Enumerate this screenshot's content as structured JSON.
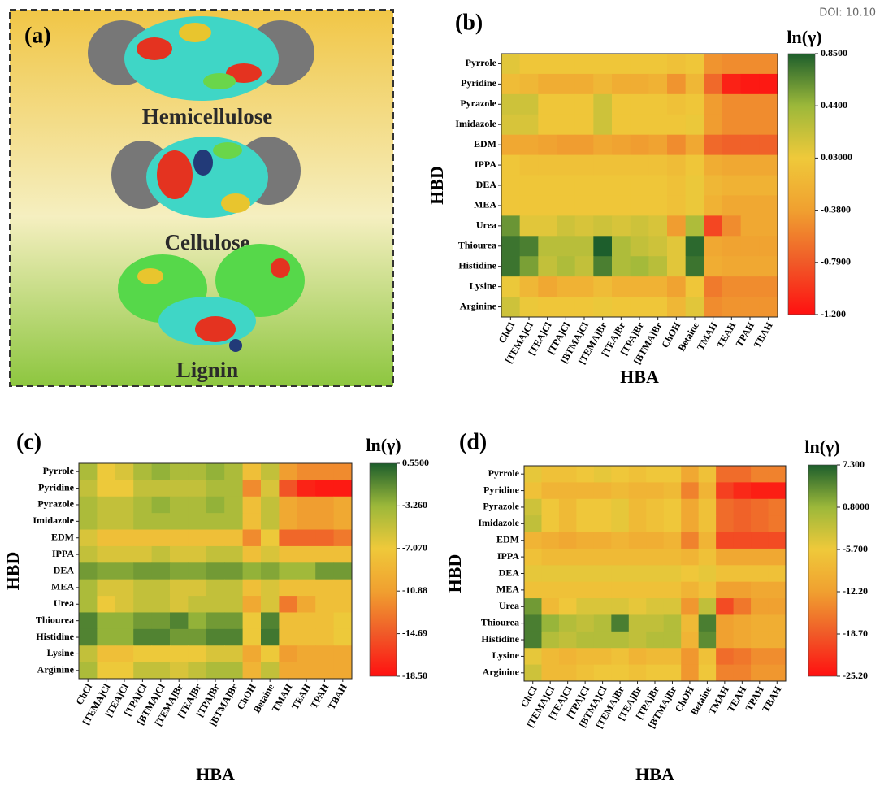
{
  "doi": "DOI: 10.10",
  "panel_a": {
    "label": "(a)",
    "molecules": [
      "Hemicellulose",
      "Cellulose",
      "Lignin"
    ]
  },
  "chart_data": [
    {
      "type": "heatmap",
      "panel_label": "(b)",
      "x_label": "HBA",
      "y_label": "HBD",
      "colorbar_title": "ln(γ)",
      "x_categories": [
        "ChCl",
        "[TEMA]Cl",
        "[TEA]Cl",
        "[TPA]Cl",
        "[BTMA]Cl",
        "[TEMA]Br",
        "[TEA]Br",
        "[TPA]Br",
        "[BTMA]Br",
        "ChOH",
        "Betaine",
        "TMAH",
        "TEAH",
        "TPAH",
        "TBAH"
      ],
      "y_categories": [
        "Pyrrole",
        "Pyridine",
        "Pyrazole",
        "Imidazole",
        "EDM",
        "IPPA",
        "DEA",
        "MEA",
        "Urea",
        "Thiourea",
        "Histidine",
        "Lysine",
        "Arginine"
      ],
      "z": [
        [
          0.1,
          0,
          0,
          0,
          0,
          0,
          0,
          0,
          0,
          -0.05,
          0,
          -0.45,
          -0.5,
          -0.5,
          -0.5
        ],
        [
          -0.1,
          -0.15,
          -0.25,
          -0.25,
          -0.25,
          -0.15,
          -0.25,
          -0.25,
          -0.2,
          -0.45,
          -0.15,
          -0.7,
          -1.1,
          -1.15,
          -1.15
        ],
        [
          0.2,
          0.2,
          0,
          0,
          0,
          0.2,
          0,
          0,
          0,
          -0.05,
          0,
          -0.4,
          -0.5,
          -0.5,
          -0.5
        ],
        [
          0.15,
          0.15,
          0,
          0,
          0,
          0.2,
          0,
          0,
          0,
          0,
          0.05,
          -0.4,
          -0.5,
          -0.5,
          -0.5
        ],
        [
          -0.3,
          -0.3,
          -0.35,
          -0.4,
          -0.4,
          -0.3,
          -0.35,
          -0.4,
          -0.35,
          -0.5,
          -0.3,
          -0.7,
          -0.75,
          -0.75,
          -0.75
        ],
        [
          0,
          -0.05,
          -0.05,
          -0.05,
          -0.05,
          -0.05,
          -0.05,
          -0.05,
          -0.05,
          -0.1,
          0,
          -0.25,
          -0.3,
          -0.3,
          -0.3
        ],
        [
          0,
          0,
          0,
          0,
          0,
          0,
          0,
          0,
          0,
          -0.05,
          0.05,
          -0.15,
          -0.2,
          -0.2,
          -0.2
        ],
        [
          0,
          0,
          0,
          0,
          0,
          0,
          0,
          0,
          0,
          -0.05,
          0.05,
          -0.2,
          -0.3,
          -0.3,
          -0.3
        ],
        [
          0.6,
          0.1,
          0.1,
          0.2,
          0.15,
          0.2,
          0.15,
          0.2,
          0.15,
          -0.4,
          0.35,
          -0.9,
          -0.5,
          -0.3,
          -0.3
        ],
        [
          0.75,
          0.7,
          0.3,
          0.3,
          0.3,
          0.85,
          0.35,
          0.25,
          0.2,
          0.1,
          0.8,
          -0.3,
          -0.35,
          -0.35,
          -0.35
        ],
        [
          0.75,
          0.55,
          0.25,
          0.35,
          0.25,
          0.7,
          0.35,
          0.4,
          0.3,
          0.1,
          0.75,
          -0.25,
          -0.3,
          -0.3,
          -0.3
        ],
        [
          0.05,
          -0.15,
          -0.3,
          -0.2,
          -0.2,
          -0.1,
          -0.2,
          -0.2,
          -0.2,
          -0.35,
          0,
          -0.6,
          -0.5,
          -0.5,
          -0.5
        ],
        [
          0.2,
          0.05,
          0,
          0,
          0,
          0.05,
          0,
          0,
          0,
          -0.15,
          0.1,
          -0.5,
          -0.45,
          -0.45,
          -0.45
        ]
      ],
      "clim": [
        -1.2,
        0.85
      ],
      "cticks": [
        {
          "value": 0.85,
          "label": "0.8500"
        },
        {
          "value": 0.44,
          "label": "0.4400"
        },
        {
          "value": 0.03,
          "label": "0.03000"
        },
        {
          "value": -0.38,
          "label": "-0.3800"
        },
        {
          "value": -0.79,
          "label": "-0.7900"
        },
        {
          "value": -1.2,
          "label": "-1.200"
        }
      ],
      "colormap": [
        "#ff1010",
        "#f05a28",
        "#f0a030",
        "#efc93a",
        "#9cb83a",
        "#1d5e2c"
      ]
    },
    {
      "type": "heatmap",
      "panel_label": "(c)",
      "x_label": "HBA",
      "y_label": "HBD",
      "colorbar_title": "ln(γ)",
      "x_categories": [
        "ChCl",
        "[TEMA]Cl",
        "[TEA]Cl",
        "[TPA]Cl",
        "[BTMA]Cl",
        "[TEMA]Br",
        "[TEA]Br",
        "[TPA]Br",
        "[BTMA]Br",
        "ChOH",
        "Betaine",
        "TMAH",
        "TEAH",
        "TPAH",
        "TBAH"
      ],
      "y_categories": [
        "Pyrrole",
        "Pyridine",
        "Pyrazole",
        "Imidazole",
        "EDM",
        "IPPA",
        "DEA",
        "MEA",
        "Urea",
        "Thiourea",
        "Histidine",
        "Lysine",
        "Arginine"
      ],
      "z": [
        [
          -4,
          -7,
          -6,
          -4,
          -3,
          -4,
          -4,
          -3,
          -4,
          -8,
          -5,
          -11,
          -12,
          -12,
          -12
        ],
        [
          -5,
          -7,
          -7,
          -5,
          -5,
          -5,
          -5,
          -4,
          -4,
          -12,
          -6,
          -15,
          -17.5,
          -18,
          -18
        ],
        [
          -4,
          -5,
          -5,
          -4,
          -3,
          -4,
          -4,
          -3,
          -4,
          -8,
          -5,
          -10,
          -11,
          -11,
          -10
        ],
        [
          -4,
          -5,
          -5,
          -4,
          -4,
          -4,
          -4,
          -4,
          -4,
          -8,
          -5,
          -10,
          -11,
          -11,
          -10
        ],
        [
          -6,
          -8,
          -8,
          -8,
          -8,
          -8,
          -8,
          -8,
          -8,
          -12,
          -7,
          -14,
          -14,
          -14,
          -13
        ],
        [
          -5,
          -6,
          -6,
          -6,
          -5,
          -6,
          -6,
          -5,
          -5,
          -8,
          -6,
          -8,
          -8,
          -8,
          -8
        ],
        [
          -2,
          -2.5,
          -2.5,
          -2,
          -2,
          -2.5,
          -2.5,
          -2,
          -2,
          -3,
          -2.5,
          -3.5,
          -3.5,
          -2,
          -2
        ],
        [
          -4,
          -6,
          -6,
          -5,
          -5,
          -6,
          -6,
          -5,
          -5,
          -8,
          -6,
          -8,
          -8,
          -8,
          -8
        ],
        [
          -4,
          -7,
          -6,
          -5,
          -5,
          -6,
          -5,
          -5,
          -5,
          -10,
          -6,
          -13,
          -10,
          -8,
          -8
        ],
        [
          -1,
          -3,
          -3,
          -2,
          -2,
          -1,
          -3,
          -2,
          -2,
          -7,
          -1,
          -8,
          -8,
          -8,
          -7
        ],
        [
          -1,
          -3,
          -3,
          -1,
          -1,
          -2,
          -2,
          -1,
          -1,
          -7,
          -0.5,
          -8,
          -8,
          -8,
          -7
        ],
        [
          -5,
          -8,
          -8,
          -7,
          -7,
          -7,
          -7,
          -6,
          -6,
          -10,
          -7,
          -11,
          -10,
          -10,
          -10
        ],
        [
          -4,
          -7,
          -7,
          -5,
          -5,
          -6,
          -5,
          -4,
          -4,
          -9,
          -5,
          -10,
          -10,
          -10,
          -10
        ]
      ],
      "clim": [
        -18.5,
        0.55
      ],
      "cticks": [
        {
          "value": 0.55,
          "label": "0.5500"
        },
        {
          "value": -3.26,
          "label": "-3.260"
        },
        {
          "value": -7.07,
          "label": "-7.070"
        },
        -10.88,
        -14.69,
        {
          "value": -18.5,
          "label": "-18.50"
        }
      ],
      "colormap": [
        "#ff1010",
        "#f05a28",
        "#f0a030",
        "#efc93a",
        "#9cb83a",
        "#1d5e2c"
      ]
    },
    {
      "type": "heatmap",
      "panel_label": "(d)",
      "x_label": "HBA",
      "y_label": "HBD",
      "colorbar_title": "ln(γ)",
      "x_categories": [
        "ChCl",
        "[TEMA]Cl",
        "[TEA]Cl",
        "[TPA]Cl",
        "[BTMA]Cl",
        "[TEMA]Br",
        "[TEA]Br",
        "[TPA]Br",
        "[BTMA]Br",
        "ChOH",
        "Betaine",
        "TMAH",
        "TEAH",
        "TPAH",
        "TBAH"
      ],
      "y_categories": [
        "Pyrrole",
        "Pyridine",
        "Pyrazole",
        "Imidazole",
        "EDM",
        "IPPA",
        "DEA",
        "MEA",
        "Urea",
        "Thiourea",
        "Histidine",
        "Lysine",
        "Arginine"
      ],
      "z": [
        [
          -5,
          -7,
          -7,
          -6,
          -5,
          -6,
          -7,
          -6,
          -6,
          -11,
          -7,
          -17,
          -17,
          -15,
          -15
        ],
        [
          -7,
          -9,
          -9,
          -9,
          -9,
          -8,
          -9,
          -9,
          -8,
          -15,
          -9,
          -21,
          -23,
          -24,
          -24
        ],
        [
          -3,
          -6,
          -8,
          -6,
          -6,
          -5,
          -8,
          -7,
          -6,
          -11,
          -7,
          -17,
          -18,
          -17,
          -16
        ],
        [
          -2,
          -6,
          -8,
          -6,
          -6,
          -5,
          -8,
          -7,
          -6,
          -11,
          -7,
          -17,
          -18,
          -17,
          -16
        ],
        [
          -9,
          -10,
          -11,
          -10,
          -10,
          -9,
          -10,
          -10,
          -9,
          -15,
          -9,
          -20,
          -20,
          -20,
          -20
        ],
        [
          -7,
          -8,
          -8,
          -8,
          -8,
          -8,
          -8,
          -8,
          -8,
          -9,
          -7,
          -11,
          -11,
          -11,
          -11
        ],
        [
          -5,
          -5,
          -5,
          -5,
          -5,
          -5,
          -5,
          -5,
          -5,
          -6,
          -5,
          -7,
          -7,
          -7,
          -7
        ],
        [
          -7,
          -7,
          -7,
          -7,
          -7,
          -7,
          -7,
          -7,
          -7,
          -9,
          -7,
          -12,
          -12,
          -11,
          -11
        ],
        [
          3,
          -8,
          -6,
          -4,
          -4,
          -4,
          -5,
          -4,
          -4,
          -13,
          -2,
          -20,
          -16,
          -12,
          -12
        ],
        [
          5,
          1,
          -1,
          -2,
          -1,
          5,
          -2,
          -2,
          -1,
          -8,
          5,
          -12,
          -11,
          -10,
          -10
        ],
        [
          5,
          -1,
          -2,
          -1,
          -1,
          -1,
          -2,
          -1,
          -1,
          -9,
          4,
          -12,
          -11,
          -10,
          -10
        ],
        [
          -5,
          -8,
          -9,
          -8,
          -8,
          -7,
          -9,
          -8,
          -8,
          -13,
          -7,
          -17,
          -16,
          -14,
          -14
        ],
        [
          -3,
          -8,
          -8,
          -7,
          -6,
          -6,
          -7,
          -6,
          -6,
          -13,
          -6,
          -15,
          -15,
          -13,
          -13
        ]
      ],
      "clim": [
        -25.2,
        7.3
      ],
      "cticks": [
        {
          "value": 7.3,
          "label": "7.300"
        },
        {
          "value": 0.8,
          "label": "0.8000"
        },
        {
          "value": -5.7,
          "label": "-5.700"
        },
        {
          "value": -12.2,
          "label": "-12.20"
        },
        {
          "value": -18.7,
          "label": "-18.70"
        },
        {
          "value": -25.2,
          "label": "-25.20"
        }
      ],
      "colormap": [
        "#ff1010",
        "#f05a28",
        "#f0a030",
        "#efc93a",
        "#9cb83a",
        "#1d5e2c"
      ]
    }
  ]
}
